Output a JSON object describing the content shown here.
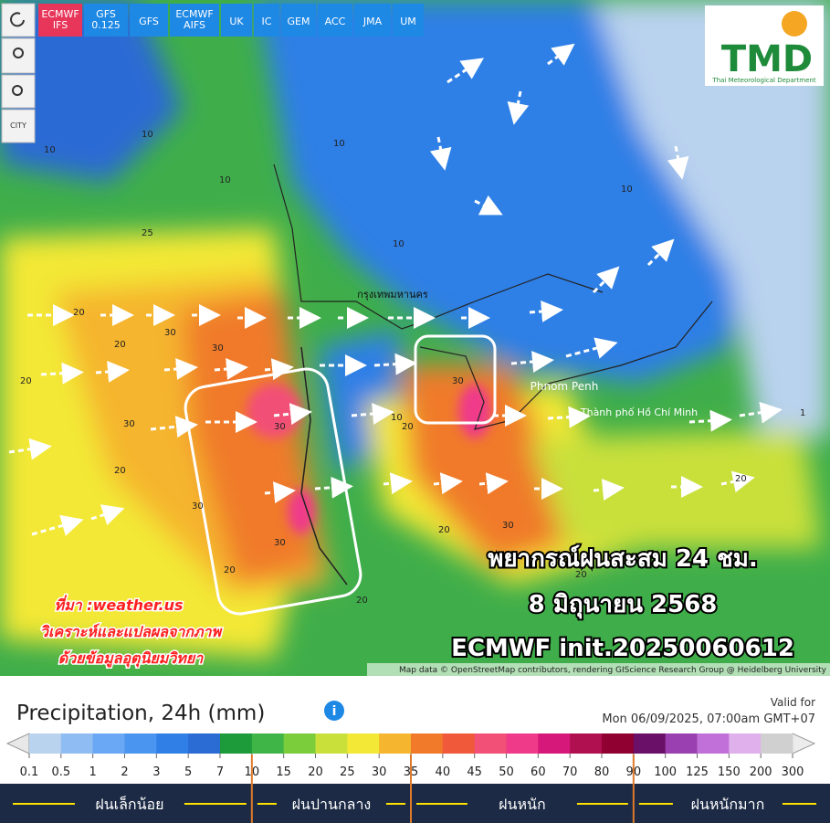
{
  "toolbar": {
    "tabs": [
      "ECMWF IFS",
      "GFS 0.125",
      "GFS",
      "ECMWF AIFS",
      "UK",
      "IC",
      "GEM",
      "ACC",
      "JMA",
      "UM"
    ],
    "city": "CITY"
  },
  "logo": {
    "title": "TMD",
    "subtitle": "Thai Meteorological Department"
  },
  "map": {
    "places": [
      "กรุงเทพมหานคร",
      "Phnom Penh",
      "Thành phố Hồ Chí Minh"
    ],
    "contours": [
      "10",
      "10",
      "10",
      "10",
      "20",
      "20",
      "25",
      "20",
      "30",
      "30",
      "30",
      "30",
      "30",
      "20",
      "30",
      "20",
      "30",
      "20",
      "30",
      "20",
      "10",
      "10",
      "20",
      "20",
      "20",
      "10",
      "1"
    ],
    "headline": [
      "พยากรณ์ฝนสะสม 24 ชม.",
      "8 มิถุนายน 2568",
      "ECMWF init.20250060612"
    ],
    "credits": [
      "ที่มา :weather.us",
      "วิเคราะห์และแปลผลจากภาพ",
      "ด้วยข้อมูลอุตุนิยมวิทยา"
    ],
    "attribution": "Map data © OpenStreetMap contributors, rendering GIScience Research Group @ Heidelberg University"
  },
  "legend": {
    "title": "Precipitation, 24h (mm)",
    "valid_label": "Valid for",
    "valid_time": "Mon 06/09/2025, 07:00am GMT+07",
    "ticks": [
      "0.1",
      "0.5",
      "1",
      "2",
      "3",
      "5",
      "7",
      "10",
      "15",
      "20",
      "25",
      "30",
      "35",
      "40",
      "45",
      "50",
      "60",
      "70",
      "80",
      "90",
      "100",
      "125",
      "150",
      "200",
      "300"
    ],
    "colors": [
      "#b9d2ee",
      "#8fbcf3",
      "#6aa8f5",
      "#4a95ef",
      "#2f7fe6",
      "#2a6bd4",
      "#1d9a3a",
      "#3fb548",
      "#7ccd3c",
      "#c9e03a",
      "#f3e836",
      "#f5b52e",
      "#f07a2a",
      "#f05a3a",
      "#f25077",
      "#ef3a8a",
      "#d6187a",
      "#b01050",
      "#900030",
      "#6b1068",
      "#9a40b0",
      "#c070d8",
      "#e0b0ec",
      "#d0d0d0"
    ],
    "categories": [
      "ฝนเล็กน้อย",
      "ฝนปานกลาง",
      "ฝนหนัก",
      "ฝนหนักมาก"
    ]
  }
}
